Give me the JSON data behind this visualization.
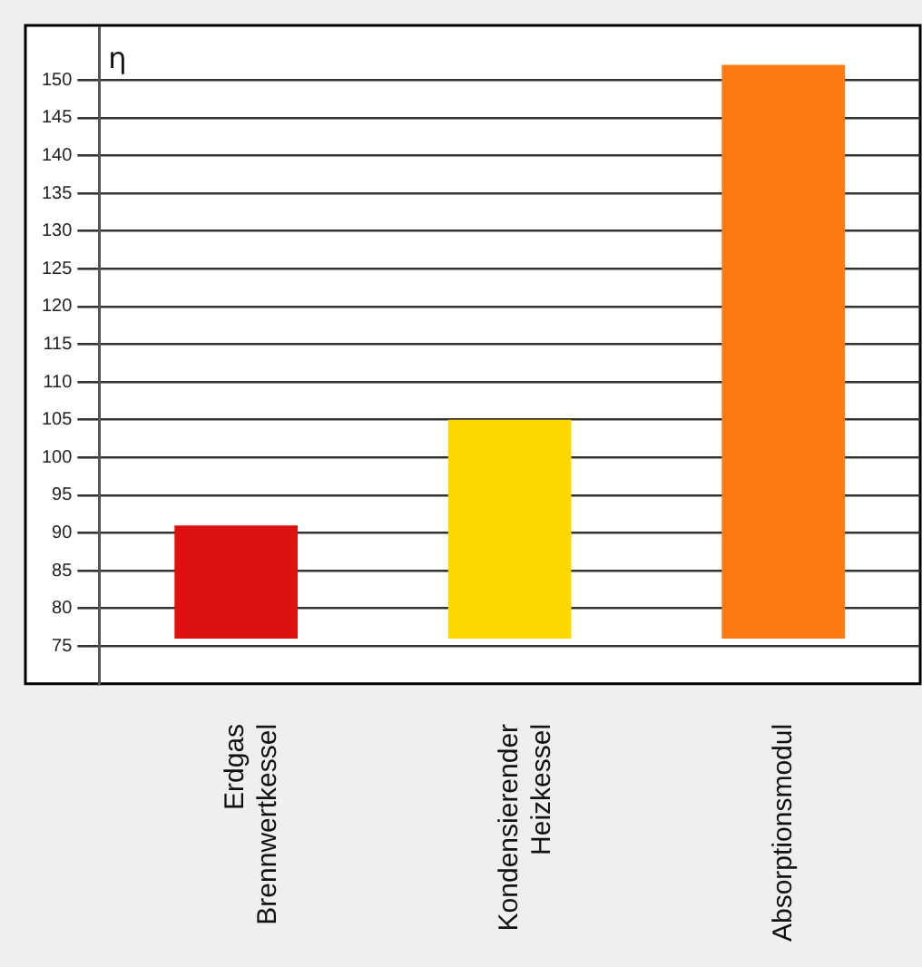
{
  "chart_data": {
    "type": "bar",
    "ylabel": "η",
    "categories": [
      "Erdgas\nBrennwertkessel",
      "Kondensierender\nHeizkessel",
      "Absorptionsmodul"
    ],
    "values": [
      15,
      29,
      76
    ],
    "base": [
      76,
      76,
      76
    ],
    "colors": [
      "#dd1111",
      "#ffd700",
      "#ff7a10"
    ],
    "ylim": [
      70,
      157
    ],
    "yticks": [
      75,
      80,
      85,
      90,
      95,
      100,
      105,
      110,
      115,
      120,
      125,
      130,
      135,
      140,
      145,
      150
    ],
    "grid": "y"
  }
}
